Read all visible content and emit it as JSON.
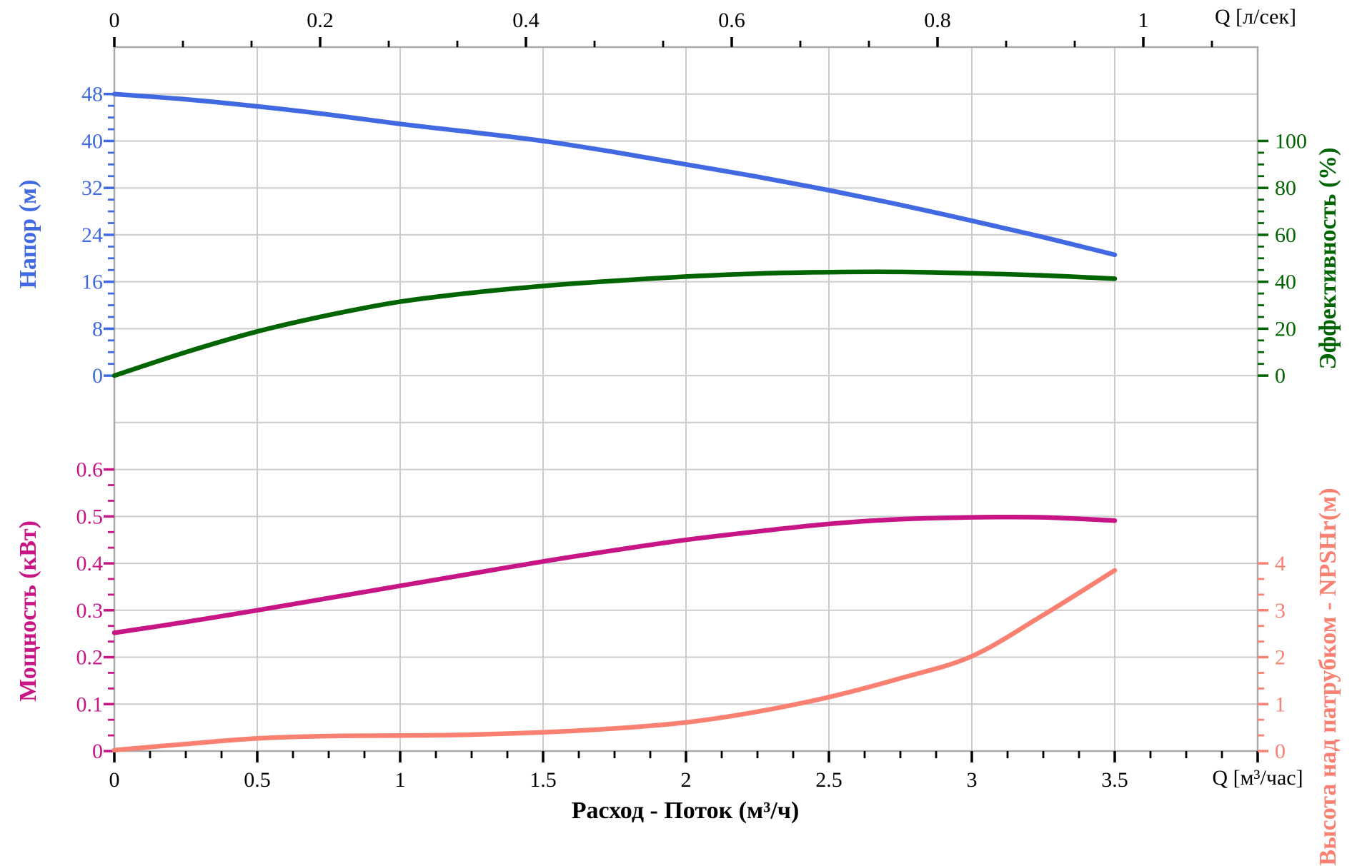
{
  "page": {
    "background": "#ffffff",
    "grid_color": "#cccccc",
    "spine_color": "#a9a9a9",
    "tick_color": "#000000"
  },
  "chart_data": {
    "type": "line",
    "title": "",
    "x_axis_bottom": {
      "axis_title": "Расход - Поток (м³/ч)",
      "unit_label": "Q [м³/час]",
      "tick_labels": [
        "0",
        "0.5",
        "1",
        "1.5",
        "2",
        "2.5",
        "3",
        "3.5"
      ],
      "tick_values": [
        0,
        0.5,
        1,
        1.5,
        2,
        2.5,
        3,
        3.5
      ],
      "minor_ticks_between_majors": 3,
      "range_m3h": [
        0,
        4
      ]
    },
    "x_axis_top": {
      "unit_label": "Q [л/сек]",
      "tick_labels": [
        "0",
        "0.2",
        "0.4",
        "0.6",
        "0.8",
        "1"
      ],
      "tick_values_lps": [
        0,
        0.2,
        0.4,
        0.6,
        0.8,
        1
      ],
      "minor_ticks_between_majors": 2,
      "conversion_m3h_per_lps": 3.6
    },
    "y_axes": {
      "head": {
        "title": "Напор (м)",
        "color": "#4169e1",
        "side": "left",
        "tick_labels": [
          "0",
          "8",
          "16",
          "24",
          "32",
          "40",
          "48"
        ],
        "tick_values": [
          0,
          8,
          16,
          24,
          32,
          40,
          48
        ],
        "minor_step": 2,
        "units_per_gridline": 8,
        "zero_on_gridline_index": 7
      },
      "efficiency": {
        "title": "Эффективность (%)",
        "color": "#006400",
        "side": "right",
        "tick_labels": [
          "0",
          "20",
          "40",
          "60",
          "80",
          "100"
        ],
        "tick_values": [
          0,
          20,
          40,
          60,
          80,
          100
        ],
        "minor_step": 5,
        "units_per_gridline": 20,
        "zero_on_gridline_index": 7
      },
      "power": {
        "title": "Мощность (кВт)",
        "color": "#c71585",
        "side": "left",
        "tick_labels": [
          "0",
          "0.1",
          "0.2",
          "0.3",
          "0.4",
          "0.5",
          "0.6"
        ],
        "tick_values": [
          0,
          0.1,
          0.2,
          0.3,
          0.4,
          0.5,
          0.6
        ],
        "minor_step": 0.033333,
        "units_per_gridline": 0.1,
        "zero_on_gridline_index": 15
      },
      "npsh": {
        "title": "Высота над патрубком - NPSHr(м)",
        "color": "#fa8072",
        "side": "right",
        "tick_labels": [
          "0",
          "1",
          "2",
          "3",
          "4"
        ],
        "tick_values": [
          0,
          1,
          2,
          3,
          4
        ],
        "minor_step": 0.333333,
        "units_per_gridline": 1,
        "zero_on_gridline_index": 15
      }
    },
    "series": [
      {
        "name": "Напор",
        "axis": "head",
        "color": "#4169e1",
        "x": [
          0,
          0.25,
          0.5,
          0.75,
          1,
          1.25,
          1.5,
          1.75,
          2,
          2.25,
          2.5,
          2.75,
          3,
          3.25,
          3.5
        ],
        "y": [
          48,
          47.1,
          45.9,
          44.5,
          42.9,
          41.5,
          40,
          38.1,
          36,
          33.9,
          31.6,
          29.1,
          26.4,
          23.6,
          20.6
        ]
      },
      {
        "name": "Эффективность",
        "axis": "efficiency",
        "color": "#006400",
        "x": [
          0,
          0.25,
          0.5,
          0.75,
          1,
          1.25,
          1.5,
          1.75,
          2,
          2.25,
          2.5,
          2.75,
          3,
          3.25,
          3.5
        ],
        "y": [
          0,
          10,
          18.8,
          25.8,
          31.5,
          35.3,
          38.2,
          40.4,
          42.2,
          43.5,
          44.1,
          44.2,
          43.6,
          42.7,
          41.3
        ]
      },
      {
        "name": "Мощность",
        "axis": "power",
        "color": "#c71585",
        "x": [
          0,
          0.25,
          0.5,
          0.75,
          1,
          1.25,
          1.5,
          1.75,
          2,
          2.25,
          2.5,
          2.75,
          3,
          3.25,
          3.5
        ],
        "y": [
          0.252,
          0.275,
          0.3,
          0.326,
          0.352,
          0.378,
          0.404,
          0.428,
          0.45,
          0.468,
          0.484,
          0.494,
          0.498,
          0.498,
          0.491
        ]
      },
      {
        "name": "NPSHr",
        "axis": "npsh",
        "color": "#fa8072",
        "x": [
          0,
          0.25,
          0.5,
          0.75,
          1,
          1.25,
          1.5,
          1.75,
          2,
          2.25,
          2.5,
          2.75,
          3,
          3.25,
          3.5
        ],
        "y": [
          0.02,
          0.15,
          0.27,
          0.32,
          0.33,
          0.35,
          0.4,
          0.48,
          0.61,
          0.84,
          1.15,
          1.55,
          2.02,
          2.9,
          3.85
        ]
      }
    ],
    "grid": {
      "on": true,
      "legend": "none"
    }
  }
}
